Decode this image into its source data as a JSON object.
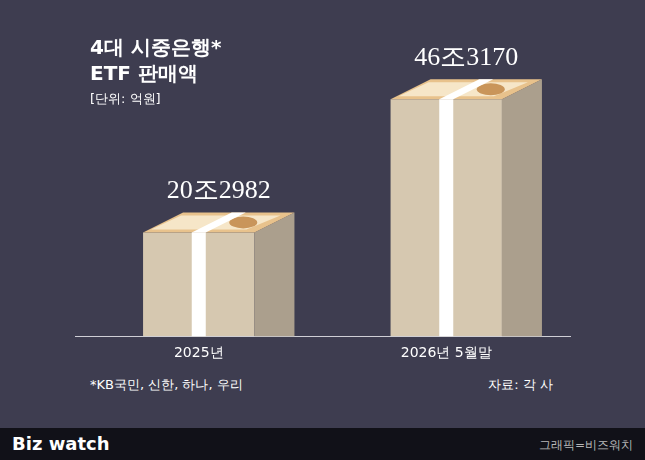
{
  "chart_data": {
    "type": "bar",
    "title": [
      "4대 시중은행*",
      "ETF 판매액"
    ],
    "subtitle": "[단위: 억원]",
    "categories": [
      "2025년",
      "2026년 5월말"
    ],
    "values": [
      202982,
      463170
    ],
    "value_labels": [
      "20조2982",
      "46조3170"
    ],
    "data_labels": true,
    "color": "#d6c8b0",
    "ylim": [
      0,
      540000
    ],
    "grid": false,
    "tick_labels": "x",
    "footnote": "*KB국민, 신한, 하나, 우리",
    "source": "자료: 각 사",
    "brand": "Biz watch",
    "credit": "그래픽=비즈워치"
  }
}
